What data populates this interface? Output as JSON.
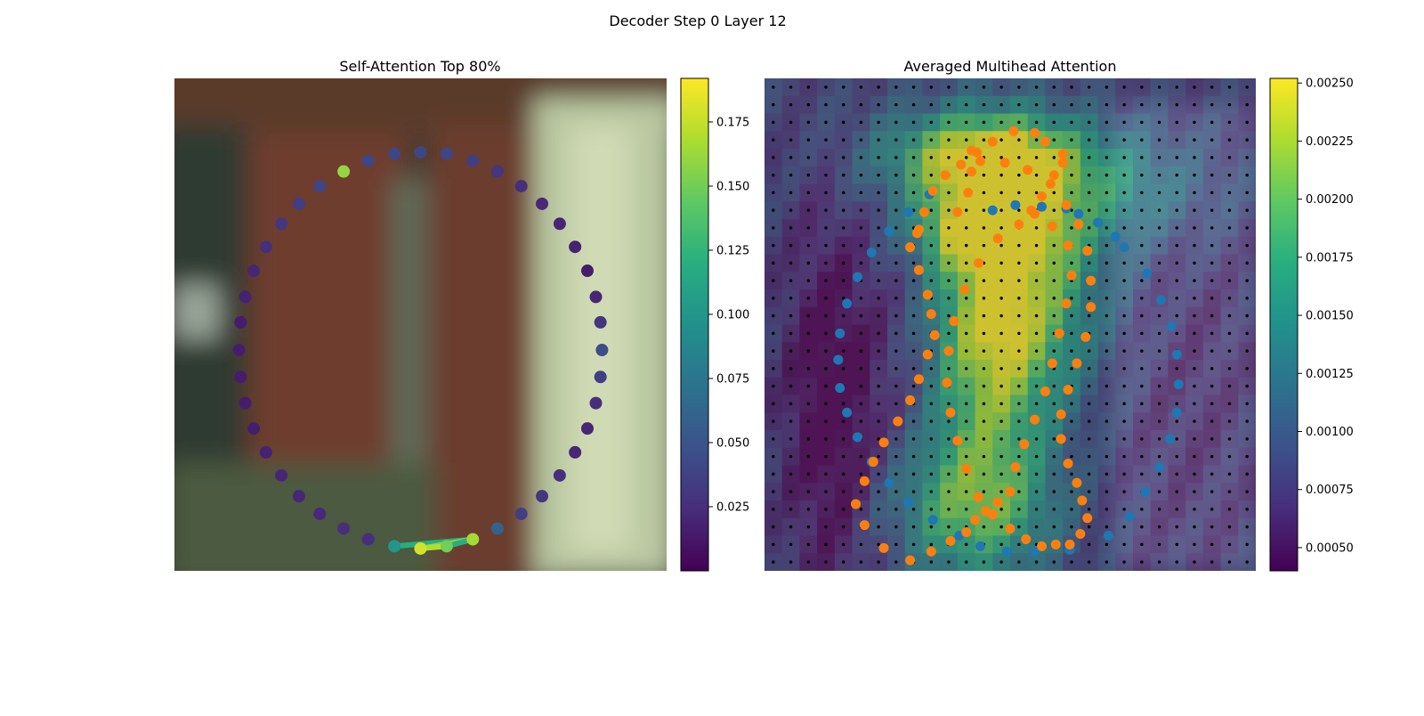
{
  "figure": {
    "title": "Decoder Step 0 Layer 12"
  },
  "chart_data": [
    {
      "type": "scatter",
      "title": "Self-Attention Top 80%",
      "description_of_background": "blurred photo",
      "xlim": [
        0,
        64
      ],
      "ylim": [
        64,
        0
      ],
      "colormap": "viridis",
      "colorbar": {
        "min": 0.0,
        "max": 0.192,
        "ticks": [
          0.025,
          0.05,
          0.075,
          0.1,
          0.125,
          0.15,
          0.175
        ]
      },
      "points": [
        {
          "x": 32.0,
          "y": 9.6,
          "v": 0.04
        },
        {
          "x": 35.4,
          "y": 9.8,
          "v": 0.04
        },
        {
          "x": 38.8,
          "y": 10.7,
          "v": 0.035
        },
        {
          "x": 42.0,
          "y": 12.1,
          "v": 0.03
        },
        {
          "x": 45.1,
          "y": 14.0,
          "v": 0.025
        },
        {
          "x": 47.8,
          "y": 16.3,
          "v": 0.022
        },
        {
          "x": 50.1,
          "y": 18.9,
          "v": 0.02
        },
        {
          "x": 52.1,
          "y": 21.9,
          "v": 0.018
        },
        {
          "x": 53.7,
          "y": 25.0,
          "v": 0.015
        },
        {
          "x": 54.8,
          "y": 28.4,
          "v": 0.02
        },
        {
          "x": 55.4,
          "y": 31.7,
          "v": 0.03
        },
        {
          "x": 55.6,
          "y": 35.3,
          "v": 0.045
        },
        {
          "x": 55.4,
          "y": 38.8,
          "v": 0.035
        },
        {
          "x": 54.8,
          "y": 42.2,
          "v": 0.025
        },
        {
          "x": 53.7,
          "y": 45.5,
          "v": 0.02
        },
        {
          "x": 52.1,
          "y": 48.6,
          "v": 0.02
        },
        {
          "x": 50.1,
          "y": 51.6,
          "v": 0.025
        },
        {
          "x": 47.8,
          "y": 54.3,
          "v": 0.03
        },
        {
          "x": 45.1,
          "y": 56.6,
          "v": 0.035
        },
        {
          "x": 42.0,
          "y": 58.5,
          "v": 0.06
        },
        {
          "x": 38.8,
          "y": 59.9,
          "v": 0.165
        },
        {
          "x": 35.4,
          "y": 60.8,
          "v": 0.15
        },
        {
          "x": 32.0,
          "y": 61.1,
          "v": 0.18
        },
        {
          "x": 28.6,
          "y": 60.8,
          "v": 0.1
        },
        {
          "x": 25.2,
          "y": 59.9,
          "v": 0.025
        },
        {
          "x": 22.0,
          "y": 58.5,
          "v": 0.025
        },
        {
          "x": 18.9,
          "y": 56.6,
          "v": 0.022
        },
        {
          "x": 16.2,
          "y": 54.3,
          "v": 0.02
        },
        {
          "x": 13.9,
          "y": 51.6,
          "v": 0.02
        },
        {
          "x": 11.9,
          "y": 48.6,
          "v": 0.018
        },
        {
          "x": 10.3,
          "y": 45.5,
          "v": 0.015
        },
        {
          "x": 9.2,
          "y": 42.2,
          "v": 0.015
        },
        {
          "x": 8.6,
          "y": 38.8,
          "v": 0.015
        },
        {
          "x": 8.4,
          "y": 35.3,
          "v": 0.015
        },
        {
          "x": 8.6,
          "y": 31.7,
          "v": 0.015
        },
        {
          "x": 9.2,
          "y": 28.4,
          "v": 0.018
        },
        {
          "x": 10.3,
          "y": 25.0,
          "v": 0.02
        },
        {
          "x": 11.9,
          "y": 21.9,
          "v": 0.025
        },
        {
          "x": 13.9,
          "y": 18.9,
          "v": 0.03
        },
        {
          "x": 16.2,
          "y": 16.3,
          "v": 0.035
        },
        {
          "x": 18.9,
          "y": 14.0,
          "v": 0.04
        },
        {
          "x": 22.0,
          "y": 12.1,
          "v": 0.16
        },
        {
          "x": 25.2,
          "y": 10.7,
          "v": 0.04
        },
        {
          "x": 28.6,
          "y": 9.8,
          "v": 0.04
        }
      ],
      "edges": [
        {
          "from": 23,
          "to": 20,
          "v": 0.12
        },
        {
          "from": 22,
          "to": 20,
          "v": 0.16
        },
        {
          "from": 21,
          "to": 20,
          "v": 0.12
        },
        {
          "from": 22,
          "to": 21,
          "v": 0.17
        }
      ]
    },
    {
      "type": "heatmap",
      "title": "Averaged Multihead Attention",
      "colormap": "viridis",
      "grid": {
        "rows": 28,
        "cols": 28
      },
      "xlim": [
        0,
        28
      ],
      "ylim": [
        28,
        0
      ],
      "colorbar": {
        "min": 0.0004,
        "max": 0.00252,
        "ticks": [
          0.0005,
          0.00075,
          0.001,
          0.00125,
          0.0015,
          0.00175,
          0.002,
          0.00225,
          0.0025
        ]
      },
      "reference_points": [
        {
          "x": 13.0,
          "y": 7.5
        },
        {
          "x": 14.3,
          "y": 7.2
        },
        {
          "x": 15.8,
          "y": 7.3
        },
        {
          "x": 17.2,
          "y": 7.4
        },
        {
          "x": 17.9,
          "y": 7.7
        },
        {
          "x": 19.0,
          "y": 8.2
        },
        {
          "x": 20.0,
          "y": 9.0
        },
        {
          "x": 20.5,
          "y": 9.6
        },
        {
          "x": 21.8,
          "y": 11.1
        },
        {
          "x": 22.6,
          "y": 12.6
        },
        {
          "x": 23.2,
          "y": 14.1
        },
        {
          "x": 23.5,
          "y": 15.7
        },
        {
          "x": 23.6,
          "y": 17.4
        },
        {
          "x": 23.5,
          "y": 19.0
        },
        {
          "x": 23.1,
          "y": 20.5
        },
        {
          "x": 22.5,
          "y": 22.1
        },
        {
          "x": 21.7,
          "y": 23.5
        },
        {
          "x": 20.8,
          "y": 24.9
        },
        {
          "x": 19.6,
          "y": 26.0
        },
        {
          "x": 17.4,
          "y": 26.8
        },
        {
          "x": 15.4,
          "y": 26.9
        },
        {
          "x": 13.8,
          "y": 26.9
        },
        {
          "x": 12.3,
          "y": 26.6
        },
        {
          "x": 11.1,
          "y": 26.0
        },
        {
          "x": 9.6,
          "y": 25.1
        },
        {
          "x": 8.2,
          "y": 24.1
        },
        {
          "x": 7.1,
          "y": 23.0
        },
        {
          "x": 6.1,
          "y": 21.8
        },
        {
          "x": 5.3,
          "y": 20.4
        },
        {
          "x": 4.7,
          "y": 19.0
        },
        {
          "x": 4.3,
          "y": 17.6
        },
        {
          "x": 4.2,
          "y": 16.0
        },
        {
          "x": 4.3,
          "y": 14.5
        },
        {
          "x": 4.7,
          "y": 12.8
        },
        {
          "x": 5.3,
          "y": 11.3
        },
        {
          "x": 6.1,
          "y": 9.9
        },
        {
          "x": 7.1,
          "y": 8.7
        },
        {
          "x": 8.2,
          "y": 7.6
        },
        {
          "x": 9.4,
          "y": 6.6
        }
      ],
      "sampled_points": [
        {
          "x": 11.8,
          "y": 4.1
        },
        {
          "x": 13.0,
          "y": 3.6
        },
        {
          "x": 14.2,
          "y": 3.0
        },
        {
          "x": 12.1,
          "y": 4.2
        },
        {
          "x": 14.2,
          "y": 3.0
        },
        {
          "x": 13.0,
          "y": 3.6
        },
        {
          "x": 15.4,
          "y": 3.1
        },
        {
          "x": 16.0,
          "y": 3.6
        },
        {
          "x": 17.0,
          "y": 4.3
        },
        {
          "x": 17.0,
          "y": 4.8
        },
        {
          "x": 16.5,
          "y": 5.5
        },
        {
          "x": 15.8,
          "y": 6.7
        },
        {
          "x": 15.2,
          "y": 7.5
        },
        {
          "x": 11.8,
          "y": 5.3
        },
        {
          "x": 11.6,
          "y": 6.5
        },
        {
          "x": 11.0,
          "y": 7.6
        },
        {
          "x": 8.8,
          "y": 8.6
        },
        {
          "x": 8.3,
          "y": 9.6
        },
        {
          "x": 8.8,
          "y": 10.9
        },
        {
          "x": 9.3,
          "y": 12.3
        },
        {
          "x": 9.5,
          "y": 13.4
        },
        {
          "x": 9.7,
          "y": 14.6
        },
        {
          "x": 9.3,
          "y": 15.7
        },
        {
          "x": 8.8,
          "y": 17.1
        },
        {
          "x": 8.3,
          "y": 18.3
        },
        {
          "x": 7.6,
          "y": 19.5
        },
        {
          "x": 6.8,
          "y": 20.7
        },
        {
          "x": 6.2,
          "y": 21.8
        },
        {
          "x": 5.7,
          "y": 22.9
        },
        {
          "x": 5.2,
          "y": 24.2
        },
        {
          "x": 5.7,
          "y": 25.4
        },
        {
          "x": 6.8,
          "y": 26.7
        },
        {
          "x": 8.3,
          "y": 27.4
        },
        {
          "x": 9.5,
          "y": 26.9
        },
        {
          "x": 10.6,
          "y": 26.3
        },
        {
          "x": 11.5,
          "y": 25.8
        },
        {
          "x": 12.0,
          "y": 25.1
        },
        {
          "x": 12.6,
          "y": 24.6
        },
        {
          "x": 13.3,
          "y": 24.1
        },
        {
          "x": 14.0,
          "y": 23.5
        },
        {
          "x": 14.3,
          "y": 22.1
        },
        {
          "x": 14.8,
          "y": 20.8
        },
        {
          "x": 15.4,
          "y": 19.4
        },
        {
          "x": 16.0,
          "y": 17.8
        },
        {
          "x": 16.4,
          "y": 16.2
        },
        {
          "x": 16.8,
          "y": 14.5
        },
        {
          "x": 17.2,
          "y": 12.8
        },
        {
          "x": 17.5,
          "y": 11.2
        },
        {
          "x": 17.3,
          "y": 9.5
        },
        {
          "x": 16.4,
          "y": 8.4
        },
        {
          "x": 15.4,
          "y": 7.7
        },
        {
          "x": 14.5,
          "y": 8.3
        },
        {
          "x": 13.3,
          "y": 9.1
        },
        {
          "x": 12.2,
          "y": 10.5
        },
        {
          "x": 11.4,
          "y": 12.0
        },
        {
          "x": 10.8,
          "y": 13.8
        },
        {
          "x": 10.5,
          "y": 15.5
        },
        {
          "x": 10.4,
          "y": 17.3
        },
        {
          "x": 10.6,
          "y": 19.0
        },
        {
          "x": 11.0,
          "y": 20.6
        },
        {
          "x": 11.5,
          "y": 22.2
        },
        {
          "x": 12.2,
          "y": 23.8
        },
        {
          "x": 13.0,
          "y": 24.8
        },
        {
          "x": 14.0,
          "y": 25.6
        },
        {
          "x": 14.9,
          "y": 26.2
        },
        {
          "x": 15.8,
          "y": 26.6
        },
        {
          "x": 16.6,
          "y": 26.5
        },
        {
          "x": 17.4,
          "y": 26.5
        },
        {
          "x": 18.0,
          "y": 25.9
        },
        {
          "x": 18.4,
          "y": 25.0
        },
        {
          "x": 18.1,
          "y": 24.0
        },
        {
          "x": 17.8,
          "y": 23.0
        },
        {
          "x": 17.3,
          "y": 21.9
        },
        {
          "x": 16.9,
          "y": 20.5
        },
        {
          "x": 16.9,
          "y": 19.1
        },
        {
          "x": 17.3,
          "y": 17.7
        },
        {
          "x": 17.8,
          "y": 16.2
        },
        {
          "x": 18.3,
          "y": 14.7
        },
        {
          "x": 18.6,
          "y": 13.0
        },
        {
          "x": 18.6,
          "y": 11.5
        },
        {
          "x": 18.4,
          "y": 9.8
        },
        {
          "x": 17.9,
          "y": 8.3
        },
        {
          "x": 17.2,
          "y": 7.2
        },
        {
          "x": 16.3,
          "y": 6.0
        },
        {
          "x": 15.0,
          "y": 5.2
        },
        {
          "x": 13.7,
          "y": 4.8
        },
        {
          "x": 12.3,
          "y": 4.7
        },
        {
          "x": 11.2,
          "y": 4.9
        },
        {
          "x": 10.3,
          "y": 5.5
        },
        {
          "x": 9.6,
          "y": 6.4
        },
        {
          "x": 9.1,
          "y": 7.6
        },
        {
          "x": 8.7,
          "y": 8.8
        }
      ]
    }
  ]
}
